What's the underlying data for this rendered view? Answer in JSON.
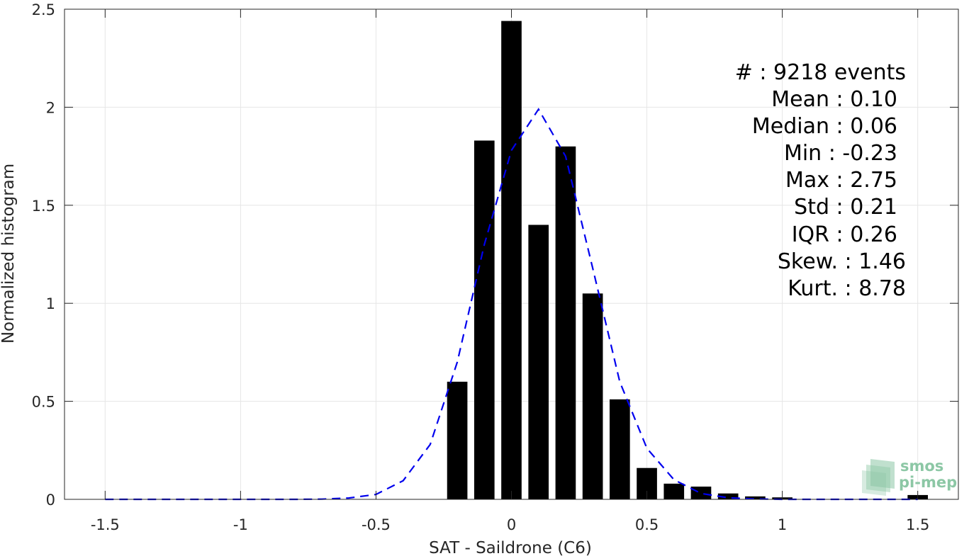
{
  "chart_data": {
    "type": "bar",
    "xlabel": "SAT - Saildrone (C6)",
    "ylabel": "Normalized histogram",
    "xlim": [
      -1.65,
      1.65
    ],
    "ylim": [
      0,
      2.5
    ],
    "grid": true,
    "xticks": [
      -1.5,
      -1,
      -0.5,
      0,
      0.5,
      1,
      1.5
    ],
    "xtick_labels": [
      "-1.5",
      "-1",
      "-0.5",
      "0",
      "0.5",
      "1",
      "1.5"
    ],
    "yticks": [
      0,
      0.5,
      1,
      1.5,
      2,
      2.5
    ],
    "ytick_labels": [
      "0",
      "0.5",
      "1",
      "1.5",
      "2",
      "2.5"
    ],
    "bar_color": "#000000",
    "bar_width": 0.075,
    "bars": {
      "x": [
        -0.2,
        -0.1,
        0.0,
        0.1,
        0.2,
        0.3,
        0.4,
        0.5,
        0.6,
        0.7,
        0.8,
        0.9,
        1.0,
        1.5
      ],
      "values": [
        0.6,
        1.83,
        2.44,
        1.4,
        1.8,
        1.05,
        0.51,
        0.16,
        0.08,
        0.065,
        0.03,
        0.015,
        0.01,
        0.022
      ]
    },
    "fit_curve": {
      "color": "#0000ee",
      "style": "dashed",
      "x": [
        -1.5,
        -1.4,
        -1.3,
        -1.2,
        -1.1,
        -1.0,
        -0.9,
        -0.8,
        -0.7,
        -0.6,
        -0.5,
        -0.4,
        -0.3,
        -0.2,
        -0.1,
        0.0,
        0.1,
        0.2,
        0.3,
        0.4,
        0.5,
        0.6,
        0.7,
        0.8,
        0.9,
        1.0,
        1.1,
        1.2,
        1.3,
        1.4,
        1.5
      ],
      "y": [
        0,
        0,
        0,
        0,
        0,
        0,
        0,
        0,
        0.001,
        0.007,
        0.025,
        0.095,
        0.28,
        0.7,
        1.3,
        1.78,
        1.99,
        1.75,
        1.18,
        0.6,
        0.26,
        0.1,
        0.03,
        0.008,
        0.002,
        0,
        0,
        0,
        0,
        0,
        0
      ]
    }
  },
  "stats": {
    "count": "#  : 9218 events",
    "mean": "Mean : 0.10",
    "median": "Median : 0.06",
    "min": "Min : -0.23",
    "max": "Max : 2.75",
    "std": "Std : 0.21",
    "iqr": "IQR : 0.26",
    "skew": "Skew. : 1.46",
    "kurt": "Kurt. : 8.78"
  },
  "logo": {
    "line1": "smos",
    "line2": "pi-mep",
    "color": "#8cc7a5"
  }
}
